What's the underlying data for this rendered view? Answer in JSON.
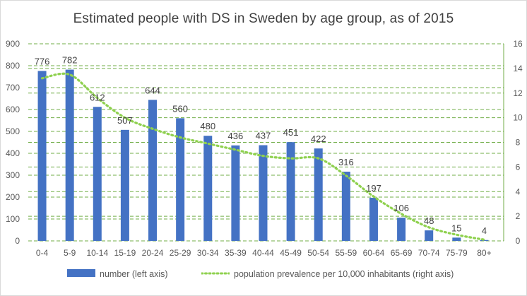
{
  "chart_data": {
    "type": "bar",
    "title": "Estimated people with DS in Sweden by age group, as of 2015",
    "categories": [
      "0-4",
      "5-9",
      "10-14",
      "15-19",
      "20-24",
      "25-29",
      "30-34",
      "35-39",
      "40-44",
      "45-49",
      "50-54",
      "55-59",
      "60-64",
      "65-69",
      "70-74",
      "75-79",
      "80+"
    ],
    "series": [
      {
        "name": "number (left axis)",
        "type": "bar",
        "axis": "left",
        "color": "#4472c4",
        "values": [
          776,
          782,
          612,
          507,
          644,
          560,
          480,
          436,
          437,
          451,
          422,
          316,
          197,
          106,
          48,
          15,
          4
        ]
      },
      {
        "name": "population prevalence per 10,000 inhabitants (right axis)",
        "type": "line",
        "style": "dotted",
        "axis": "right",
        "color": "#8fd14f",
        "values": [
          13.2,
          13.5,
          11.6,
          10.0,
          9.1,
          8.4,
          7.9,
          7.4,
          6.9,
          6.7,
          6.7,
          5.3,
          3.6,
          2.2,
          1.1,
          0.5,
          0.1
        ]
      }
    ],
    "y_left": {
      "ylim": [
        0,
        900
      ],
      "ticks": [
        "0",
        "100",
        "200",
        "300",
        "400",
        "500",
        "600",
        "700",
        "800",
        "900"
      ]
    },
    "y_right": {
      "ylim": [
        0,
        16
      ],
      "ticks": [
        "0",
        "2",
        "4",
        "6",
        "8",
        "10",
        "12",
        "14",
        "16"
      ]
    },
    "legend_position": "bottom",
    "grid": "dashed horizontal"
  }
}
